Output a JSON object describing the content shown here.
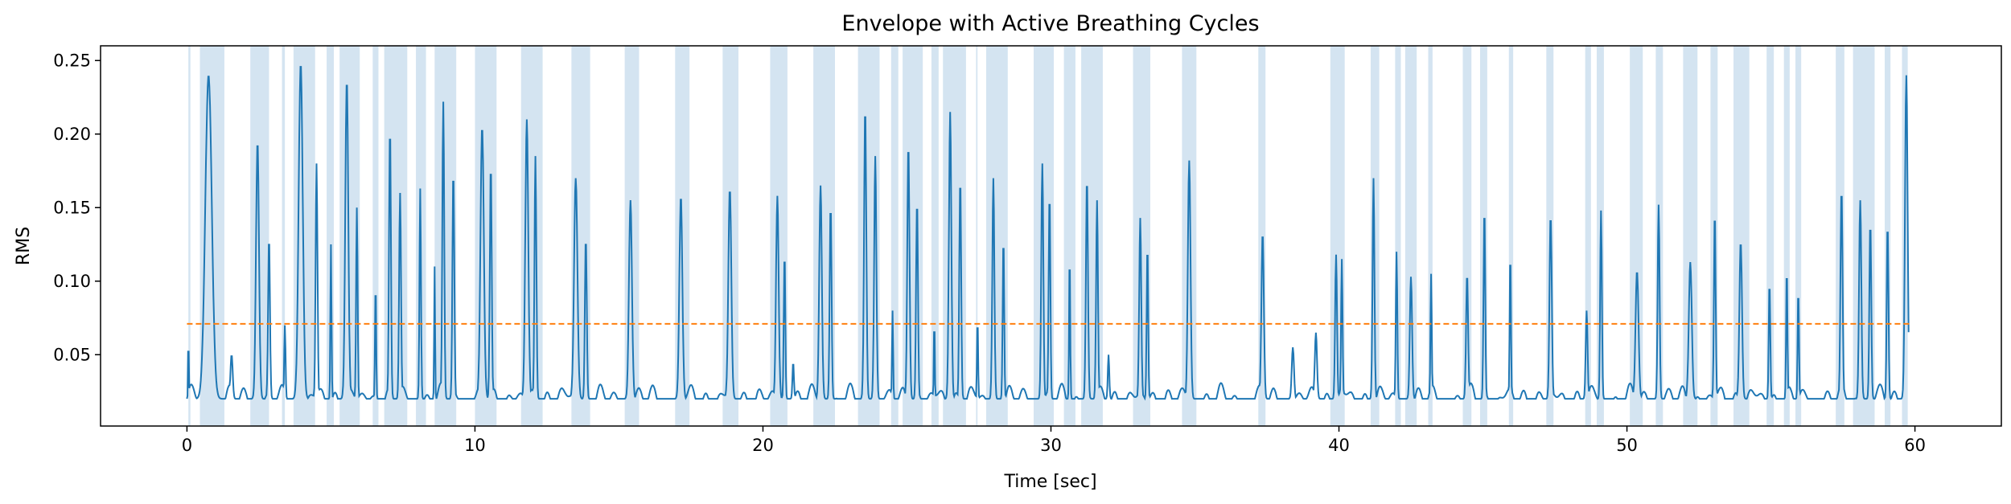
{
  "chart_data": {
    "type": "line",
    "title": "Envelope with Active Breathing Cycles",
    "xlabel": "Time [sec]",
    "ylabel": "RMS",
    "xlim": [
      -3,
      63
    ],
    "ylim": [
      0.0015,
      0.26
    ],
    "xticks": [
      0,
      10,
      20,
      30,
      40,
      50,
      60
    ],
    "yticks": [
      0.05,
      0.1,
      0.15,
      0.2,
      0.25
    ],
    "ytick_labels": [
      "0.05",
      "0.10",
      "0.15",
      "0.20",
      "0.25"
    ],
    "grid": false,
    "threshold": {
      "value": 0.071,
      "color": "#ff7f0e",
      "style": "dashed"
    },
    "line_color": "#1f77b4",
    "span_color": "#d4e4f1",
    "active_spans": [
      [
        0.05,
        0.12
      ],
      [
        0.45,
        1.3
      ],
      [
        2.2,
        2.85
      ],
      [
        3.3,
        3.4
      ],
      [
        3.7,
        4.45
      ],
      [
        4.85,
        5.1
      ],
      [
        5.3,
        6.0
      ],
      [
        6.45,
        6.65
      ],
      [
        6.85,
        7.65
      ],
      [
        7.95,
        8.3
      ],
      [
        8.6,
        9.35
      ],
      [
        10.0,
        10.75
      ],
      [
        11.6,
        12.35
      ],
      [
        13.35,
        14.0
      ],
      [
        15.2,
        15.7
      ],
      [
        16.95,
        17.45
      ],
      [
        18.6,
        19.15
      ],
      [
        20.25,
        20.85
      ],
      [
        21.75,
        22.5
      ],
      [
        23.3,
        24.05
      ],
      [
        24.45,
        24.7
      ],
      [
        24.85,
        25.55
      ],
      [
        25.85,
        26.1
      ],
      [
        26.25,
        27.05
      ],
      [
        27.4,
        27.45
      ],
      [
        27.75,
        28.5
      ],
      [
        29.4,
        30.1
      ],
      [
        30.45,
        30.85
      ],
      [
        31.05,
        31.8
      ],
      [
        32.85,
        33.45
      ],
      [
        34.55,
        35.05
      ],
      [
        37.2,
        37.45
      ],
      [
        39.7,
        40.2
      ],
      [
        41.1,
        41.4
      ],
      [
        41.95,
        42.15
      ],
      [
        42.3,
        42.7
      ],
      [
        43.1,
        43.25
      ],
      [
        44.3,
        44.6
      ],
      [
        44.9,
        45.15
      ],
      [
        45.9,
        46.05
      ],
      [
        47.2,
        47.45
      ],
      [
        48.55,
        48.75
      ],
      [
        48.95,
        49.2
      ],
      [
        50.1,
        50.55
      ],
      [
        51.0,
        51.25
      ],
      [
        51.95,
        52.45
      ],
      [
        52.9,
        53.15
      ],
      [
        53.7,
        54.25
      ],
      [
        54.85,
        55.1
      ],
      [
        55.45,
        55.65
      ],
      [
        55.85,
        56.05
      ],
      [
        57.25,
        57.55
      ],
      [
        57.85,
        58.6
      ],
      [
        58.95,
        59.15
      ],
      [
        59.55,
        59.75
      ]
    ],
    "peaks": [
      [
        0.05,
        0.075,
        0.03
      ],
      [
        0.75,
        0.24,
        0.35
      ],
      [
        1.55,
        0.05,
        0.12
      ],
      [
        2.45,
        0.195,
        0.16
      ],
      [
        2.85,
        0.13,
        0.1
      ],
      [
        3.4,
        0.07,
        0.07
      ],
      [
        3.95,
        0.248,
        0.22
      ],
      [
        4.5,
        0.18,
        0.1
      ],
      [
        5.0,
        0.125,
        0.06
      ],
      [
        5.55,
        0.237,
        0.16
      ],
      [
        5.9,
        0.15,
        0.08
      ],
      [
        6.55,
        0.1,
        0.06
      ],
      [
        7.05,
        0.205,
        0.1
      ],
      [
        7.4,
        0.16,
        0.1
      ],
      [
        8.1,
        0.163,
        0.08
      ],
      [
        8.6,
        0.11,
        0.05
      ],
      [
        8.9,
        0.222,
        0.1
      ],
      [
        9.25,
        0.175,
        0.1
      ],
      [
        10.25,
        0.205,
        0.18
      ],
      [
        10.55,
        0.18,
        0.1
      ],
      [
        11.8,
        0.21,
        0.16
      ],
      [
        12.1,
        0.185,
        0.1
      ],
      [
        13.5,
        0.17,
        0.18
      ],
      [
        13.85,
        0.13,
        0.1
      ],
      [
        15.4,
        0.155,
        0.16
      ],
      [
        17.15,
        0.158,
        0.16
      ],
      [
        18.85,
        0.163,
        0.16
      ],
      [
        20.5,
        0.158,
        0.14
      ],
      [
        20.75,
        0.12,
        0.08
      ],
      [
        21.05,
        0.045,
        0.08
      ],
      [
        22.0,
        0.165,
        0.14
      ],
      [
        22.35,
        0.152,
        0.1
      ],
      [
        23.55,
        0.218,
        0.12
      ],
      [
        23.9,
        0.185,
        0.12
      ],
      [
        24.5,
        0.08,
        0.06
      ],
      [
        25.05,
        0.193,
        0.12
      ],
      [
        25.35,
        0.155,
        0.1
      ],
      [
        25.95,
        0.075,
        0.05
      ],
      [
        26.5,
        0.215,
        0.13
      ],
      [
        26.85,
        0.17,
        0.1
      ],
      [
        27.45,
        0.075,
        0.06
      ],
      [
        28.0,
        0.17,
        0.11
      ],
      [
        28.35,
        0.13,
        0.08
      ],
      [
        29.7,
        0.18,
        0.11
      ],
      [
        29.95,
        0.16,
        0.09
      ],
      [
        30.65,
        0.12,
        0.06
      ],
      [
        31.25,
        0.17,
        0.11
      ],
      [
        31.6,
        0.155,
        0.1
      ],
      [
        32.0,
        0.05,
        0.08
      ],
      [
        33.1,
        0.143,
        0.11
      ],
      [
        33.35,
        0.125,
        0.08
      ],
      [
        34.8,
        0.182,
        0.14
      ],
      [
        37.35,
        0.133,
        0.13
      ],
      [
        38.4,
        0.055,
        0.12
      ],
      [
        39.2,
        0.065,
        0.12
      ],
      [
        39.9,
        0.118,
        0.1
      ],
      [
        40.1,
        0.115,
        0.08
      ],
      [
        41.2,
        0.17,
        0.1
      ],
      [
        42.0,
        0.12,
        0.08
      ],
      [
        42.5,
        0.103,
        0.12
      ],
      [
        43.2,
        0.105,
        0.07
      ],
      [
        44.45,
        0.105,
        0.11
      ],
      [
        45.05,
        0.15,
        0.09
      ],
      [
        45.95,
        0.12,
        0.07
      ],
      [
        47.35,
        0.145,
        0.12
      ],
      [
        48.6,
        0.08,
        0.1
      ],
      [
        49.1,
        0.148,
        0.09
      ],
      [
        50.35,
        0.107,
        0.16
      ],
      [
        51.1,
        0.152,
        0.1
      ],
      [
        52.2,
        0.113,
        0.16
      ],
      [
        53.05,
        0.148,
        0.09
      ],
      [
        53.95,
        0.127,
        0.14
      ],
      [
        54.95,
        0.1,
        0.08
      ],
      [
        55.55,
        0.11,
        0.07
      ],
      [
        55.95,
        0.095,
        0.07
      ],
      [
        57.45,
        0.163,
        0.11
      ],
      [
        58.1,
        0.155,
        0.12
      ],
      [
        58.45,
        0.14,
        0.1
      ],
      [
        59.05,
        0.14,
        0.09
      ],
      [
        59.7,
        0.24,
        0.14
      ]
    ]
  }
}
